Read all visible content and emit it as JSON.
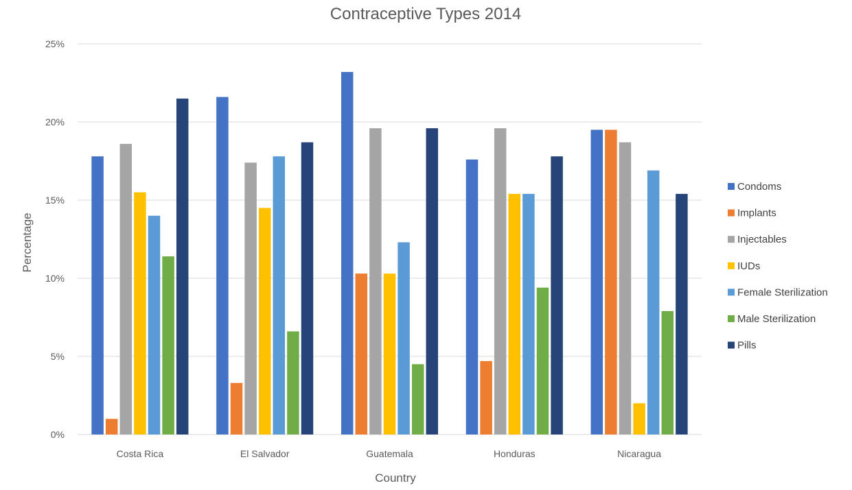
{
  "chart_data": {
    "type": "bar",
    "title": "Contraceptive Types 2014",
    "xlabel": "Country",
    "ylabel": "Percentage",
    "ylim": [
      0,
      25
    ],
    "y_ticks": [
      "0%",
      "5%",
      "10%",
      "15%",
      "20%",
      "25%"
    ],
    "grid": true,
    "legend_position": "right",
    "categories": [
      "Costa Rica",
      "El Salvador",
      "Guatemala",
      "Honduras",
      "Nicaragua"
    ],
    "series": [
      {
        "name": "Condoms",
        "color": "#4472c4",
        "values": [
          17.8,
          21.6,
          23.2,
          17.6,
          19.5
        ]
      },
      {
        "name": "Implants",
        "color": "#ed7d31",
        "values": [
          1.0,
          3.3,
          10.3,
          4.7,
          19.5
        ]
      },
      {
        "name": "Injectables",
        "color": "#a5a5a5",
        "values": [
          18.6,
          17.4,
          19.6,
          19.6,
          18.7
        ]
      },
      {
        "name": "IUDs",
        "color": "#ffc000",
        "values": [
          15.5,
          14.5,
          10.3,
          15.4,
          2.0
        ]
      },
      {
        "name": "Female Sterilization",
        "color": "#5b9bd5",
        "values": [
          14.0,
          17.8,
          12.3,
          15.4,
          16.9
        ]
      },
      {
        "name": "Male Sterilization",
        "color": "#70ad47",
        "values": [
          11.4,
          6.6,
          4.5,
          9.4,
          7.9
        ]
      },
      {
        "name": "Pills",
        "color": "#264478",
        "values": [
          21.5,
          18.7,
          19.6,
          17.8,
          15.4
        ]
      }
    ]
  }
}
